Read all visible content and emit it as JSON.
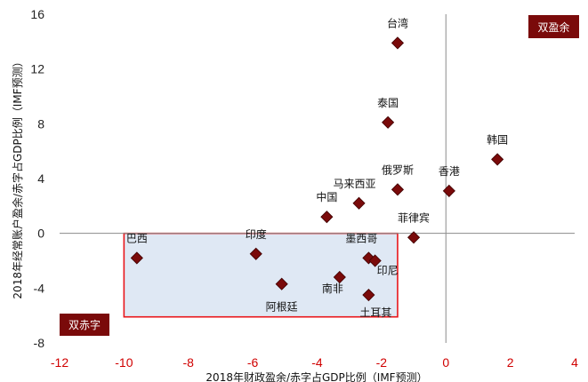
{
  "chart_data": {
    "type": "scatter",
    "xlabel": "2018年财政盈余/赤字占GDP比例（IMF预测）",
    "ylabel": "2018年经常账户盈余/赤字占GDP比例（IMF预测）",
    "xlim": [
      -12,
      4
    ],
    "ylim": [
      -8,
      16
    ],
    "x_ticks": [
      -12,
      -10,
      -8,
      -6,
      -4,
      -2,
      0,
      2,
      4
    ],
    "y_ticks": [
      -8,
      -4,
      0,
      4,
      8,
      12,
      16
    ],
    "x_tick_labels": [
      "-12",
      "-10",
      "-8",
      "-6",
      "-4",
      "-2",
      "0",
      "2",
      "4"
    ],
    "y_tick_labels": [
      "-8",
      "-4",
      "0",
      "4",
      "8",
      "12",
      "16"
    ],
    "grid": false,
    "marker_color": "#7a0a0a",
    "points": [
      {
        "name": "台湾",
        "x": -1.5,
        "y": 13.9
      },
      {
        "name": "泰国",
        "x": -1.8,
        "y": 8.1
      },
      {
        "name": "韩国",
        "x": 1.6,
        "y": 5.4
      },
      {
        "name": "俄罗斯",
        "x": -1.5,
        "y": 3.2
      },
      {
        "name": "香港",
        "x": 0.1,
        "y": 3.1
      },
      {
        "name": "马来西亚",
        "x": -2.7,
        "y": 2.2
      },
      {
        "name": "中国",
        "x": -3.7,
        "y": 1.2
      },
      {
        "name": "菲律宾",
        "x": -1.0,
        "y": -0.3
      },
      {
        "name": "巴西",
        "x": -9.6,
        "y": -1.8
      },
      {
        "name": "印度",
        "x": -5.9,
        "y": -1.5
      },
      {
        "name": "墨西哥",
        "x": -2.4,
        "y": -1.8
      },
      {
        "name": "印尼",
        "x": -2.2,
        "y": -2.0
      },
      {
        "name": "阿根廷",
        "x": -5.1,
        "y": -3.7
      },
      {
        "name": "南非",
        "x": -3.3,
        "y": -3.2
      },
      {
        "name": "土耳其",
        "x": -2.4,
        "y": -4.5
      }
    ],
    "annotations": {
      "double_surplus": "双盈余",
      "double_deficit": "双赤字"
    },
    "deficit_region": {
      "x": [
        -10,
        -1.5
      ],
      "y": [
        -6.1,
        0
      ],
      "fill": "#dfe8f4",
      "stroke": "#e8161b"
    },
    "badge_color": "#7a0a0a"
  }
}
